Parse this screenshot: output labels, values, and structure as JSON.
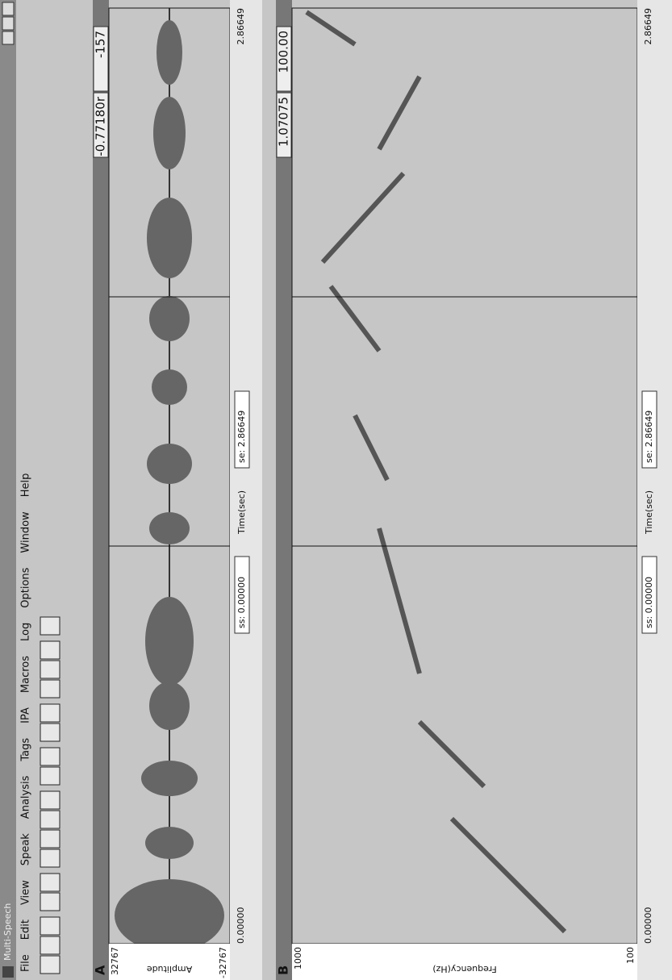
{
  "window": {
    "title": "Multi-Speech",
    "menu": [
      "File",
      "Edit",
      "View",
      "Speak",
      "Analysis",
      "Tags",
      "IPA",
      "Macros",
      "Log",
      "Options",
      "Window",
      "Help"
    ]
  },
  "panels": [
    {
      "letter": "A",
      "cursor_value": "-0.77180r",
      "cursor_amplitude": "-157",
      "y_top": "32767",
      "y_bottom": "-32767",
      "y_label": "Amplitude",
      "x_start": "0.00000",
      "x_end": "2.86649",
      "ss": "ss: 0.00000",
      "x_label": "Time(sec)",
      "se": "se: 2.86649"
    },
    {
      "letter": "B",
      "cursor_value": "1.07075",
      "cursor_amplitude": "100.00",
      "y_top": "1000",
      "y_bottom": "100",
      "y_label": "Frequency(Hz)",
      "x_start": "0.00000",
      "x_end": "2.86649",
      "ss": "ss: 0.00000",
      "x_label": "Time(sec)",
      "se": "se: 2.86649"
    }
  ]
}
